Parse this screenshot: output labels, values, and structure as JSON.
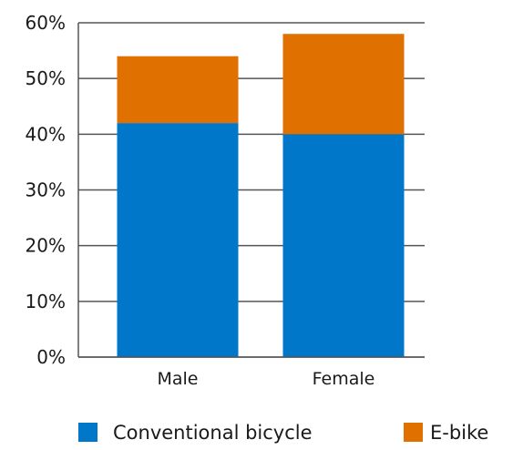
{
  "chart_data": {
    "type": "bar",
    "stacked": true,
    "categories": [
      "Male",
      "Female"
    ],
    "series": [
      {
        "name": "Conventional bicycle",
        "color": "#0077c8",
        "values": [
          42,
          40
        ]
      },
      {
        "name": "E-bike",
        "color": "#e07000",
        "values": [
          12,
          18
        ]
      }
    ],
    "ylim": [
      0,
      60
    ],
    "yticks": [
      0,
      10,
      20,
      30,
      40,
      50,
      60
    ],
    "ytick_format": "{v}%",
    "title": "",
    "xlabel": "",
    "ylabel": "",
    "grid": false,
    "legend_position": "bottom"
  }
}
